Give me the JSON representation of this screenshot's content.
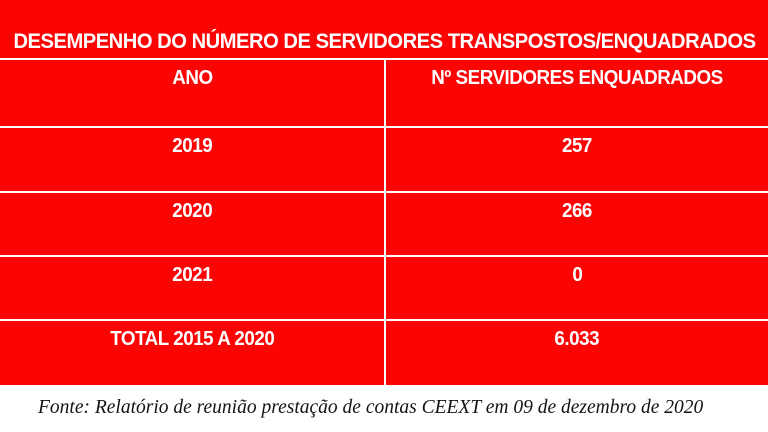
{
  "chart_data": {
    "type": "table",
    "title": "DESEMPENHO DO NÚMERO DE SERVIDORES TRANSPOSTOS/ENQUADRADOS",
    "columns": [
      "ANO",
      "Nº SERVIDORES ENQUADRADOS"
    ],
    "rows": [
      [
        "2019",
        "257"
      ],
      [
        "2020",
        "266"
      ],
      [
        "2021",
        "0"
      ],
      [
        "TOTAL 2015 A 2020",
        "6.033"
      ]
    ],
    "source_note": "Fonte: Relatório de reunião prestação de contas CEEXT em 09 de dezembro de 2020"
  },
  "table": {
    "title": "DESEMPENHO DO NÚMERO DE SERVIDORES TRANSPOSTOS/ENQUADRADOS",
    "header": {
      "col_ano": "ANO",
      "col_servidores": "Nº SERVIDORES ENQUADRADOS"
    },
    "rows": [
      {
        "ano": "2019",
        "servidores": "257"
      },
      {
        "ano": "2020",
        "servidores": "266"
      },
      {
        "ano": "2021",
        "servidores": "0"
      },
      {
        "ano": "TOTAL 2015 A 2020",
        "servidores": "6.033"
      }
    ]
  },
  "footer": {
    "fonte": "Fonte: Relatório de reunião prestação de contas CEEXT em 09 de dezembro de 2020"
  },
  "colors": {
    "table_background": "#fb0404",
    "grid_lines": "#ffffff",
    "table_text": "#ffffff",
    "footer_text": "#141414",
    "page_background": "#ffffff"
  }
}
